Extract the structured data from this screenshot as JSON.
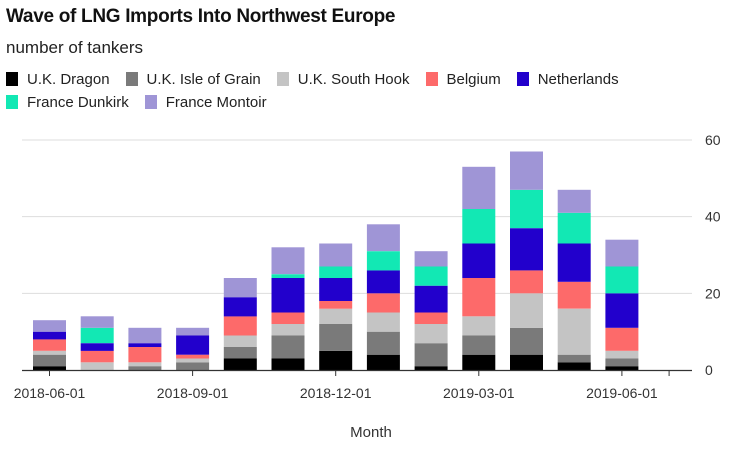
{
  "chart_data": {
    "type": "bar",
    "stacked": true,
    "title": "Wave of LNG Imports Into Northwest Europe",
    "subtitle": "number of tankers",
    "xlabel": "Month",
    "ylabel": "",
    "ylim": [
      0,
      60
    ],
    "yticks": [
      0,
      20,
      40,
      60
    ],
    "grid": true,
    "legend_position": "top-left",
    "categories": [
      "2018-06-01",
      "2018-07-01",
      "2018-08-01",
      "2018-09-01",
      "2018-10-01",
      "2018-11-01",
      "2018-12-01",
      "2019-01-01",
      "2019-02-01",
      "2019-03-01",
      "2019-04-01",
      "2019-05-01",
      "2019-06-01"
    ],
    "xtick_labels": [
      "2018-06-01",
      "2018-09-01",
      "2018-12-01",
      "2019-03-01",
      "2019-06-01"
    ],
    "xtick_indices": [
      0,
      3,
      6,
      9,
      12
    ],
    "series": [
      {
        "name": "U.K. Dragon",
        "color": "#000000",
        "values": [
          1,
          0,
          0,
          0,
          3,
          3,
          5,
          4,
          1,
          4,
          4,
          2,
          1
        ]
      },
      {
        "name": "U.K. Isle of Grain",
        "color": "#7a7a7a",
        "values": [
          3,
          0,
          1,
          2,
          3,
          6,
          7,
          6,
          6,
          5,
          7,
          2,
          2
        ]
      },
      {
        "name": "U.K. South Hook",
        "color": "#c4c4c4",
        "values": [
          1,
          2,
          1,
          1,
          3,
          3,
          4,
          5,
          5,
          5,
          9,
          12,
          2
        ]
      },
      {
        "name": "Belgium",
        "color": "#fd6a6a",
        "values": [
          3,
          3,
          4,
          1,
          5,
          3,
          2,
          5,
          3,
          10,
          6,
          7,
          6
        ]
      },
      {
        "name": "Netherlands",
        "color": "#2200cc",
        "values": [
          2,
          2,
          1,
          5,
          5,
          9,
          6,
          6,
          7,
          9,
          11,
          10,
          9
        ]
      },
      {
        "name": "France Dunkirk",
        "color": "#12e8b4",
        "values": [
          0,
          4,
          0,
          0,
          0,
          1,
          3,
          5,
          5,
          9,
          10,
          8,
          7
        ]
      },
      {
        "name": "France Montoir",
        "color": "#9f95d6",
        "values": [
          3,
          3,
          4,
          2,
          5,
          7,
          6,
          7,
          4,
          11,
          10,
          6,
          7
        ]
      }
    ]
  }
}
